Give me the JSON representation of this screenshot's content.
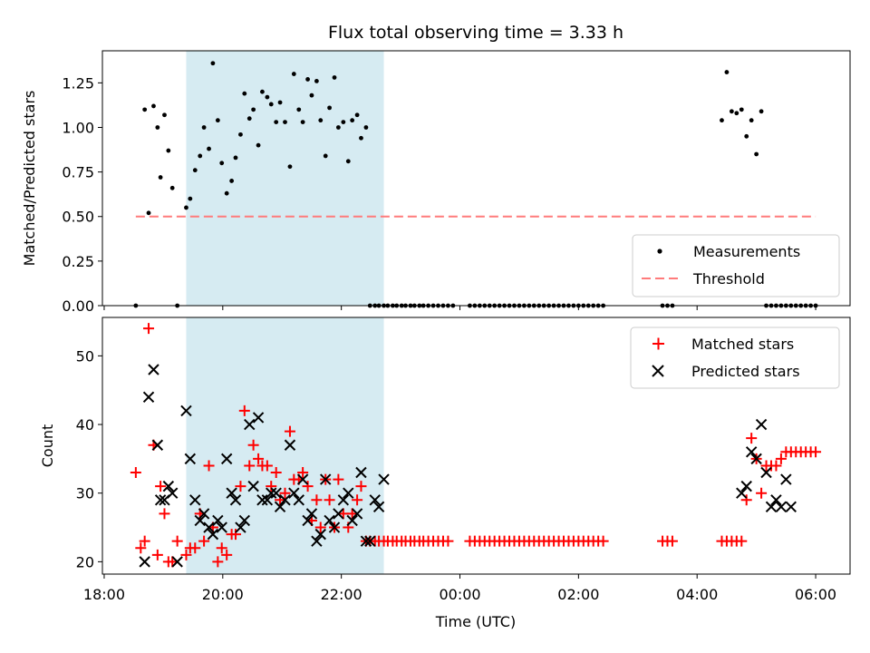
{
  "chart_data": [
    {
      "type": "scatter",
      "title": "Flux total observing time = 3.33 h",
      "xlabel": "",
      "ylabel": "Matched/Predicted stars",
      "ylim": [
        0,
        1.43
      ],
      "yticks": [
        "0.00",
        "0.25",
        "0.50",
        "0.75",
        "1.00",
        "1.25"
      ],
      "yticks_values": [
        0,
        0.25,
        0.5,
        0.75,
        1.0,
        1.25
      ],
      "highlight_span": [
        "19:23",
        "22:43"
      ],
      "legend_position": "lower-right",
      "series": [
        {
          "name": "Measurements",
          "kind": "points",
          "color": "#000000",
          "x": [
            "18:32",
            "18:41",
            "18:45",
            "18:50",
            "18:54",
            "18:57",
            "19:01",
            "19:05",
            "19:09",
            "19:14",
            "19:23",
            "19:27",
            "19:32",
            "19:37",
            "19:41",
            "19:46",
            "19:50",
            "19:55",
            "19:59",
            "20:04",
            "20:09",
            "20:13",
            "20:18",
            "20:22",
            "20:27",
            "20:31",
            "20:36",
            "20:40",
            "20:45",
            "20:49",
            "20:54",
            "20:58",
            "21:03",
            "21:08",
            "21:12",
            "21:17",
            "21:21",
            "21:26",
            "21:30",
            "21:35",
            "21:39",
            "21:44",
            "21:48",
            "21:53",
            "21:57",
            "22:02",
            "22:07",
            "22:11",
            "22:16",
            "22:20",
            "22:25",
            "22:29",
            "22:34",
            "22:38",
            "22:43",
            "22:47",
            "22:52",
            "22:56",
            "23:01",
            "23:05",
            "23:10",
            "23:14",
            "23:19",
            "23:23",
            "23:28",
            "23:33",
            "23:38",
            "23:43",
            "23:48",
            "23:53",
            "00:10",
            "00:15",
            "00:20",
            "00:25",
            "00:30",
            "00:35",
            "00:40",
            "00:45",
            "00:50",
            "00:55",
            "01:00",
            "01:05",
            "01:10",
            "01:15",
            "01:20",
            "01:25",
            "01:30",
            "01:35",
            "01:40",
            "01:45",
            "01:50",
            "01:55",
            "02:00",
            "02:05",
            "02:10",
            "02:15",
            "02:20",
            "02:25",
            "03:25",
            "03:30",
            "03:35",
            "04:25",
            "04:30",
            "04:35",
            "04:40",
            "04:45",
            "04:50",
            "04:55",
            "05:00",
            "05:05",
            "05:10",
            "05:15",
            "05:20",
            "05:25",
            "05:30",
            "05:35",
            "05:40",
            "05:45",
            "05:50",
            "05:55",
            "06:00"
          ],
          "y": [
            0.0,
            1.1,
            0.52,
            1.12,
            1.0,
            0.72,
            1.07,
            0.87,
            0.66,
            0.0,
            0.55,
            0.6,
            0.76,
            0.84,
            1.0,
            0.88,
            1.36,
            1.04,
            0.8,
            0.63,
            0.7,
            0.83,
            0.96,
            1.19,
            1.05,
            1.1,
            0.9,
            1.2,
            1.17,
            1.13,
            1.03,
            1.14,
            1.03,
            0.78,
            1.3,
            1.1,
            1.03,
            1.27,
            1.18,
            1.26,
            1.04,
            0.84,
            1.11,
            1.28,
            1.0,
            1.03,
            0.81,
            1.04,
            1.07,
            0.94,
            1.0,
            0.0,
            0.0,
            0.0,
            0.0,
            0.0,
            0.0,
            0.0,
            0.0,
            0.0,
            0.0,
            0.0,
            0.0,
            0.0,
            0.0,
            0.0,
            0.0,
            0.0,
            0.0,
            0.0,
            0.0,
            0.0,
            0.0,
            0.0,
            0.0,
            0.0,
            0.0,
            0.0,
            0.0,
            0.0,
            0.0,
            0.0,
            0.0,
            0.0,
            0.0,
            0.0,
            0.0,
            0.0,
            0.0,
            0.0,
            0.0,
            0.0,
            0.0,
            0.0,
            0.0,
            0.0,
            0.0,
            0.0,
            0.0,
            0.0,
            0.0,
            1.04,
            1.31,
            1.09,
            1.08,
            1.1,
            0.95,
            1.04,
            0.85,
            1.09,
            0.0,
            0.0,
            0.0,
            0.0,
            0.0,
            0.0,
            0.0,
            0.0,
            0.0,
            0.0,
            0.0
          ]
        },
        {
          "name": "Threshold",
          "kind": "dashed-line",
          "color": "#ff7b7b",
          "x": [
            "18:32",
            "06:00"
          ],
          "y": [
            0.5,
            0.5
          ]
        }
      ]
    },
    {
      "type": "scatter",
      "title": "",
      "xlabel": "Time (UTC)",
      "ylabel": "Count",
      "ylim": [
        18.2,
        55.6
      ],
      "yticks": [
        "20",
        "30",
        "40",
        "50"
      ],
      "yticks_values": [
        20,
        30,
        40,
        50
      ],
      "xticks": [
        "18:00",
        "20:00",
        "22:00",
        "00:00",
        "02:00",
        "04:00",
        "06:00"
      ],
      "highlight_span": [
        "19:23",
        "22:43"
      ],
      "legend_position": "upper-right",
      "series": [
        {
          "name": "Matched stars",
          "kind": "plus",
          "color": "#ff0000",
          "x": [
            "18:32",
            "18:37",
            "18:41",
            "18:45",
            "18:50",
            "18:54",
            "18:57",
            "19:01",
            "19:05",
            "19:09",
            "19:14",
            "19:23",
            "19:27",
            "19:32",
            "19:37",
            "19:41",
            "19:46",
            "19:50",
            "19:55",
            "19:59",
            "20:04",
            "20:09",
            "20:13",
            "20:18",
            "20:22",
            "20:27",
            "20:31",
            "20:36",
            "20:40",
            "20:45",
            "20:49",
            "20:54",
            "20:58",
            "21:03",
            "21:08",
            "21:12",
            "21:17",
            "21:21",
            "21:26",
            "21:30",
            "21:35",
            "21:39",
            "21:44",
            "21:48",
            "21:53",
            "21:57",
            "22:02",
            "22:07",
            "22:11",
            "22:16",
            "22:20",
            "22:25",
            "22:29",
            "22:34",
            "22:38",
            "22:43",
            "22:47",
            "22:52",
            "22:56",
            "23:01",
            "23:05",
            "23:10",
            "23:14",
            "23:19",
            "23:23",
            "23:28",
            "23:33",
            "23:38",
            "23:43",
            "23:48",
            "00:10",
            "00:15",
            "00:20",
            "00:25",
            "00:30",
            "00:35",
            "00:40",
            "00:45",
            "00:50",
            "00:55",
            "01:00",
            "01:05",
            "01:10",
            "01:15",
            "01:20",
            "01:25",
            "01:30",
            "01:35",
            "01:40",
            "01:45",
            "01:50",
            "01:55",
            "02:00",
            "02:05",
            "02:10",
            "02:15",
            "02:20",
            "02:25",
            "03:25",
            "03:30",
            "03:35",
            "04:25",
            "04:30",
            "04:35",
            "04:40",
            "04:45",
            "04:50",
            "04:55",
            "05:00",
            "05:05",
            "05:10",
            "05:15",
            "05:20",
            "05:25",
            "05:30",
            "05:35",
            "05:40",
            "05:45",
            "05:50",
            "05:55",
            "06:00"
          ],
          "y": [
            33,
            22,
            23,
            54,
            37,
            21,
            31,
            27,
            20,
            20,
            23,
            21,
            22,
            22,
            27,
            23,
            34,
            25,
            20,
            22,
            21,
            24,
            24,
            31,
            42,
            34,
            37,
            35,
            34,
            34,
            31,
            33,
            29,
            30,
            39,
            32,
            32,
            33,
            31,
            26,
            29,
            25,
            32,
            29,
            25,
            32,
            27,
            25,
            27,
            29,
            31,
            23,
            23,
            23,
            23,
            23,
            23,
            23,
            23,
            23,
            23,
            23,
            23,
            23,
            23,
            23,
            23,
            23,
            23,
            23,
            23,
            23,
            23,
            23,
            23,
            23,
            23,
            23,
            23,
            23,
            23,
            23,
            23,
            23,
            23,
            23,
            23,
            23,
            23,
            23,
            23,
            23,
            23,
            23,
            23,
            23,
            23,
            23,
            23,
            23,
            23,
            23,
            23,
            23,
            23,
            23,
            29,
            38,
            35,
            30,
            34,
            34,
            34,
            35,
            36,
            36,
            36,
            36,
            36,
            36,
            36
          ]
        },
        {
          "name": "Predicted stars",
          "kind": "x",
          "color": "#000000",
          "x": [
            "18:41",
            "18:45",
            "18:50",
            "18:54",
            "18:57",
            "19:01",
            "19:05",
            "19:09",
            "19:14",
            "19:23",
            "19:27",
            "19:32",
            "19:37",
            "19:41",
            "19:46",
            "19:50",
            "19:55",
            "19:59",
            "20:04",
            "20:09",
            "20:13",
            "20:18",
            "20:22",
            "20:27",
            "20:31",
            "20:36",
            "20:40",
            "20:45",
            "20:49",
            "20:54",
            "20:58",
            "21:03",
            "21:08",
            "21:12",
            "21:17",
            "21:21",
            "21:26",
            "21:30",
            "21:35",
            "21:39",
            "21:44",
            "21:48",
            "21:53",
            "21:57",
            "22:02",
            "22:07",
            "22:11",
            "22:16",
            "22:20",
            "22:25",
            "22:29",
            "22:34",
            "22:38",
            "22:43",
            "04:45",
            "04:50",
            "04:55",
            "05:00",
            "05:05",
            "05:10",
            "05:15",
            "05:20",
            "05:25",
            "05:30",
            "05:35"
          ],
          "y": [
            20,
            44,
            48,
            37,
            29,
            29,
            31,
            30,
            20,
            42,
            35,
            29,
            26,
            27,
            25,
            24,
            26,
            25,
            35,
            30,
            29,
            25,
            26,
            40,
            31,
            41,
            29,
            29,
            30,
            30,
            28,
            29,
            37,
            30,
            29,
            32,
            26,
            27,
            23,
            24,
            32,
            26,
            25,
            27,
            29,
            30,
            26,
            27,
            33,
            23,
            23,
            29,
            28,
            32,
            30,
            31,
            36,
            35,
            40,
            33,
            28,
            29,
            28,
            32,
            28
          ]
        }
      ]
    }
  ]
}
